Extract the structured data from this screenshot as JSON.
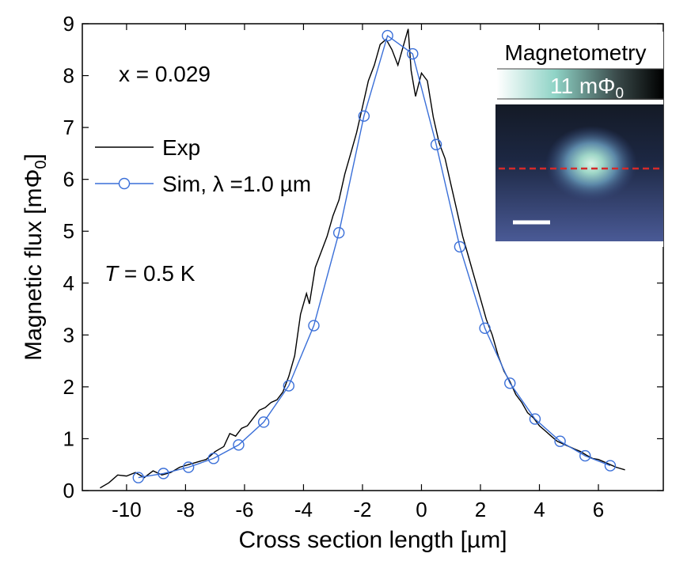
{
  "chart_data": {
    "type": "line",
    "xlabel": "Cross section length [µm]",
    "ylabel": "Magnetic flux [mΦ",
    "ylabel_sub": "0",
    "ylabel_end": "]",
    "xlim": [
      -11.5,
      8.2
    ],
    "ylim": [
      0,
      9
    ],
    "x_ticks": [
      -10,
      -8,
      -6,
      -4,
      -2,
      0,
      2,
      4,
      6
    ],
    "y_ticks": [
      0,
      1,
      2,
      3,
      4,
      5,
      6,
      7,
      8,
      9
    ],
    "grid": false,
    "legend_position": "left",
    "annotations": {
      "composition": "x = 0.029",
      "temperature_symbol": "T",
      "temperature_rest": " = 0.5 K"
    },
    "series": [
      {
        "name": "Exp",
        "color": "#000000",
        "marker": "none",
        "x": [
          -10.9,
          -10.6,
          -10.3,
          -10.0,
          -9.7,
          -9.4,
          -9.1,
          -8.8,
          -8.5,
          -8.2,
          -7.9,
          -7.6,
          -7.3,
          -7.0,
          -6.7,
          -6.5,
          -6.3,
          -6.1,
          -5.9,
          -5.7,
          -5.5,
          -5.3,
          -5.1,
          -4.9,
          -4.7,
          -4.5,
          -4.3,
          -4.1,
          -3.9,
          -3.8,
          -3.6,
          -3.4,
          -3.2,
          -3.0,
          -2.8,
          -2.6,
          -2.4,
          -2.2,
          -2.0,
          -1.8,
          -1.6,
          -1.4,
          -1.2,
          -1.0,
          -0.8,
          -0.6,
          -0.45,
          -0.35,
          -0.2,
          0.0,
          0.2,
          0.4,
          0.6,
          0.8,
          1.0,
          1.2,
          1.4,
          1.6,
          1.8,
          2.0,
          2.2,
          2.4,
          2.6,
          2.8,
          3.0,
          3.2,
          3.4,
          3.6,
          3.8,
          4.0,
          4.2,
          4.4,
          4.6,
          4.8,
          5.0,
          5.2,
          5.4,
          5.6,
          5.8,
          6.0,
          6.2,
          6.4,
          6.6,
          6.9
        ],
        "y": [
          0.05,
          0.15,
          0.3,
          0.28,
          0.35,
          0.25,
          0.38,
          0.3,
          0.35,
          0.45,
          0.5,
          0.55,
          0.6,
          0.75,
          0.85,
          1.1,
          1.05,
          1.2,
          1.25,
          1.4,
          1.55,
          1.6,
          1.7,
          1.75,
          1.9,
          2.2,
          2.6,
          3.4,
          3.8,
          3.6,
          4.3,
          4.6,
          4.9,
          5.3,
          5.6,
          6.1,
          6.5,
          6.9,
          7.4,
          7.9,
          8.2,
          8.6,
          8.7,
          8.5,
          8.2,
          8.6,
          8.9,
          8.1,
          7.6,
          8.05,
          7.9,
          7.2,
          6.7,
          6.4,
          5.9,
          5.4,
          4.9,
          4.5,
          4.1,
          3.7,
          3.3,
          3.0,
          2.6,
          2.3,
          2.1,
          1.85,
          1.7,
          1.5,
          1.4,
          1.25,
          1.15,
          1.05,
          0.95,
          0.9,
          0.85,
          0.8,
          0.75,
          0.68,
          0.62,
          0.6,
          0.55,
          0.5,
          0.45,
          0.4
        ]
      },
      {
        "name": "Sim, λ =1.0 µm",
        "color": "#3a6fd8",
        "marker": "circle",
        "x": [
          -9.6,
          -8.75,
          -7.9,
          -7.05,
          -6.2,
          -5.35,
          -4.5,
          -3.65,
          -2.8,
          -1.95,
          -1.15,
          -0.3,
          0.5,
          1.3,
          2.15,
          3.0,
          3.85,
          4.7,
          5.55,
          6.4
        ],
        "y": [
          0.25,
          0.33,
          0.45,
          0.62,
          0.88,
          1.32,
          2.02,
          3.18,
          4.97,
          7.22,
          8.77,
          8.42,
          6.67,
          4.7,
          3.13,
          2.07,
          1.38,
          0.95,
          0.67,
          0.48
        ]
      }
    ]
  },
  "inset": {
    "title": "Magnetometry",
    "colorbar_label": "11 mΦ",
    "colorbar_label_sub": "0",
    "colorbar_colors": [
      "#ffffff",
      "#8fd3c6",
      "#2a2a2a",
      "#000000"
    ],
    "cut_line_color": "#d42a2a",
    "scale_bar_color": "#ffffff"
  }
}
